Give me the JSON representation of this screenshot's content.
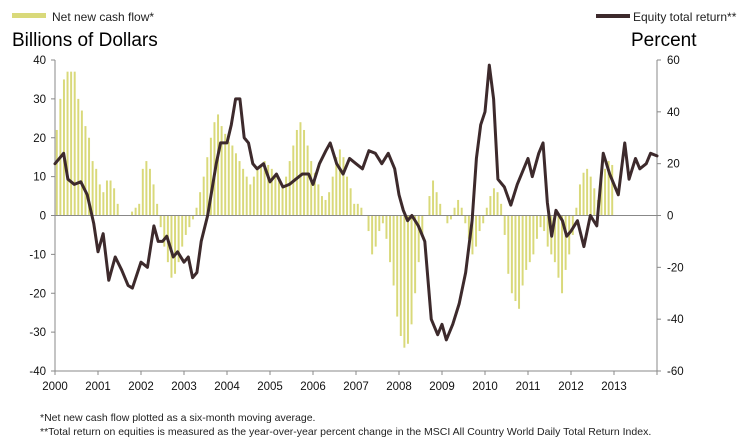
{
  "chart_data": {
    "type": "bar+line",
    "legend_left": "Net new cash flow*",
    "legend_right": "Equity total return**",
    "ylabel_left": "Billions of Dollars",
    "ylabel_right": "Percent",
    "ylim_left": [
      -40,
      40
    ],
    "ylim_right": [
      -60,
      60
    ],
    "yticks_left": [
      40,
      30,
      20,
      10,
      0,
      -10,
      -20,
      -30,
      -40
    ],
    "yticks_right": [
      60,
      40,
      20,
      0,
      -20,
      -40,
      -60
    ],
    "x_range": [
      2000,
      2014
    ],
    "xticks": [
      "2000",
      "2001",
      "2002",
      "2003",
      "2004",
      "2005",
      "2006",
      "2007",
      "2008",
      "2009",
      "2010",
      "2011",
      "2012",
      "2013"
    ],
    "colors": {
      "bars": "#d9d97a",
      "line": "#3d2a2c",
      "axis": "#888888"
    },
    "series": [
      {
        "name": "Net new cash flow*",
        "kind": "bar",
        "axis": "left",
        "start": 2000.0,
        "step": 0.0833333,
        "values": [
          22,
          30,
          35,
          37,
          37,
          37,
          30,
          27,
          23,
          20,
          14,
          12,
          8,
          6,
          9,
          9,
          7,
          3,
          0,
          0,
          0,
          1,
          2,
          3,
          12,
          14,
          12,
          8,
          3,
          -3,
          -8,
          -12,
          -16,
          -15,
          -12,
          -8,
          -5,
          -3,
          -1,
          2,
          6,
          10,
          15,
          20,
          24,
          26,
          23,
          21,
          19,
          18,
          16,
          14,
          12,
          10,
          8,
          10,
          12,
          13,
          14,
          13,
          12,
          10,
          9,
          8,
          10,
          14,
          18,
          22,
          24,
          22,
          18,
          14,
          11,
          8,
          5,
          4,
          6,
          10,
          15,
          17,
          15,
          10,
          7,
          3,
          3,
          2,
          0,
          -4,
          -10,
          -8,
          -4,
          -2,
          -6,
          -12,
          -18,
          -26,
          -31,
          -34,
          -33,
          -28,
          -20,
          -12,
          -5,
          0,
          5,
          9,
          6,
          3,
          0,
          -2,
          -1,
          2,
          4,
          2,
          -2,
          -6,
          -10,
          -8,
          -4,
          -2,
          2,
          5,
          7,
          6,
          3,
          -5,
          -15,
          -20,
          -22,
          -24,
          -18,
          -14,
          -12,
          -10,
          -6,
          -3,
          -4,
          -8,
          -10,
          -12,
          -16,
          -20,
          -14,
          -10,
          -5,
          2,
          8,
          11,
          12,
          10,
          7,
          4,
          10,
          12,
          14,
          13
        ]
      },
      {
        "name": "Equity total return**",
        "kind": "line",
        "axis": "right",
        "points": [
          [
            2000.0,
            20
          ],
          [
            2000.2,
            24
          ],
          [
            2000.3,
            14
          ],
          [
            2000.45,
            12
          ],
          [
            2000.6,
            13
          ],
          [
            2000.75,
            8
          ],
          [
            2000.9,
            -3
          ],
          [
            2001.0,
            -14
          ],
          [
            2001.12,
            -7
          ],
          [
            2001.25,
            -25
          ],
          [
            2001.4,
            -16
          ],
          [
            2001.55,
            -21
          ],
          [
            2001.7,
            -27
          ],
          [
            2001.8,
            -28
          ],
          [
            2002.0,
            -18
          ],
          [
            2002.15,
            -20
          ],
          [
            2002.3,
            -4
          ],
          [
            2002.4,
            -10
          ],
          [
            2002.5,
            -10
          ],
          [
            2002.6,
            -8
          ],
          [
            2002.75,
            -16
          ],
          [
            2002.85,
            -14
          ],
          [
            2003.0,
            -18
          ],
          [
            2003.1,
            -16
          ],
          [
            2003.2,
            -24
          ],
          [
            2003.3,
            -22
          ],
          [
            2003.4,
            -10
          ],
          [
            2003.55,
            0
          ],
          [
            2003.65,
            10
          ],
          [
            2003.75,
            20
          ],
          [
            2003.85,
            28
          ],
          [
            2004.0,
            28
          ],
          [
            2004.1,
            35
          ],
          [
            2004.2,
            45
          ],
          [
            2004.3,
            45
          ],
          [
            2004.4,
            30
          ],
          [
            2004.5,
            28
          ],
          [
            2004.6,
            20
          ],
          [
            2004.7,
            18
          ],
          [
            2004.85,
            20
          ],
          [
            2005.0,
            13
          ],
          [
            2005.15,
            16
          ],
          [
            2005.3,
            11
          ],
          [
            2005.45,
            12
          ],
          [
            2005.6,
            14
          ],
          [
            2005.75,
            16
          ],
          [
            2005.9,
            16
          ],
          [
            2006.0,
            12
          ],
          [
            2006.15,
            20
          ],
          [
            2006.3,
            25
          ],
          [
            2006.4,
            28
          ],
          [
            2006.55,
            20
          ],
          [
            2006.7,
            16
          ],
          [
            2006.85,
            22
          ],
          [
            2007.0,
            20
          ],
          [
            2007.15,
            18
          ],
          [
            2007.3,
            25
          ],
          [
            2007.45,
            24
          ],
          [
            2007.6,
            20
          ],
          [
            2007.75,
            24
          ],
          [
            2007.9,
            18
          ],
          [
            2008.0,
            8
          ],
          [
            2008.1,
            2
          ],
          [
            2008.2,
            -2
          ],
          [
            2008.3,
            0
          ],
          [
            2008.45,
            -4
          ],
          [
            2008.6,
            -10
          ],
          [
            2008.75,
            -40
          ],
          [
            2008.9,
            -46
          ],
          [
            2009.0,
            -42
          ],
          [
            2009.1,
            -48
          ],
          [
            2009.25,
            -42
          ],
          [
            2009.4,
            -34
          ],
          [
            2009.55,
            -22
          ],
          [
            2009.7,
            -2
          ],
          [
            2009.8,
            22
          ],
          [
            2009.9,
            35
          ],
          [
            2010.0,
            40
          ],
          [
            2010.1,
            58
          ],
          [
            2010.2,
            45
          ],
          [
            2010.3,
            14
          ],
          [
            2010.45,
            11
          ],
          [
            2010.6,
            4
          ],
          [
            2010.75,
            12
          ],
          [
            2010.9,
            18
          ],
          [
            2011.0,
            22
          ],
          [
            2011.1,
            15
          ],
          [
            2011.25,
            24
          ],
          [
            2011.35,
            28
          ],
          [
            2011.45,
            5
          ],
          [
            2011.55,
            -8
          ],
          [
            2011.65,
            2
          ],
          [
            2011.8,
            -2
          ],
          [
            2011.9,
            -8
          ],
          [
            2012.0,
            -6
          ],
          [
            2012.15,
            -2
          ],
          [
            2012.3,
            -12
          ],
          [
            2012.45,
            0
          ],
          [
            2012.6,
            -4
          ],
          [
            2012.75,
            24
          ],
          [
            2012.9,
            16
          ],
          [
            2013.0,
            12
          ],
          [
            2013.1,
            8
          ],
          [
            2013.25,
            28
          ],
          [
            2013.35,
            14
          ],
          [
            2013.5,
            22
          ],
          [
            2013.6,
            18
          ],
          [
            2013.75,
            20
          ],
          [
            2013.85,
            24
          ],
          [
            2014.0,
            23
          ]
        ]
      }
    ],
    "footnotes": [
      "*Net new cash flow plotted as a six-month moving average.",
      "**Total return on equities is measured as the year-over-year percent change in the MSCI All Country World Daily Total Return Index."
    ]
  }
}
